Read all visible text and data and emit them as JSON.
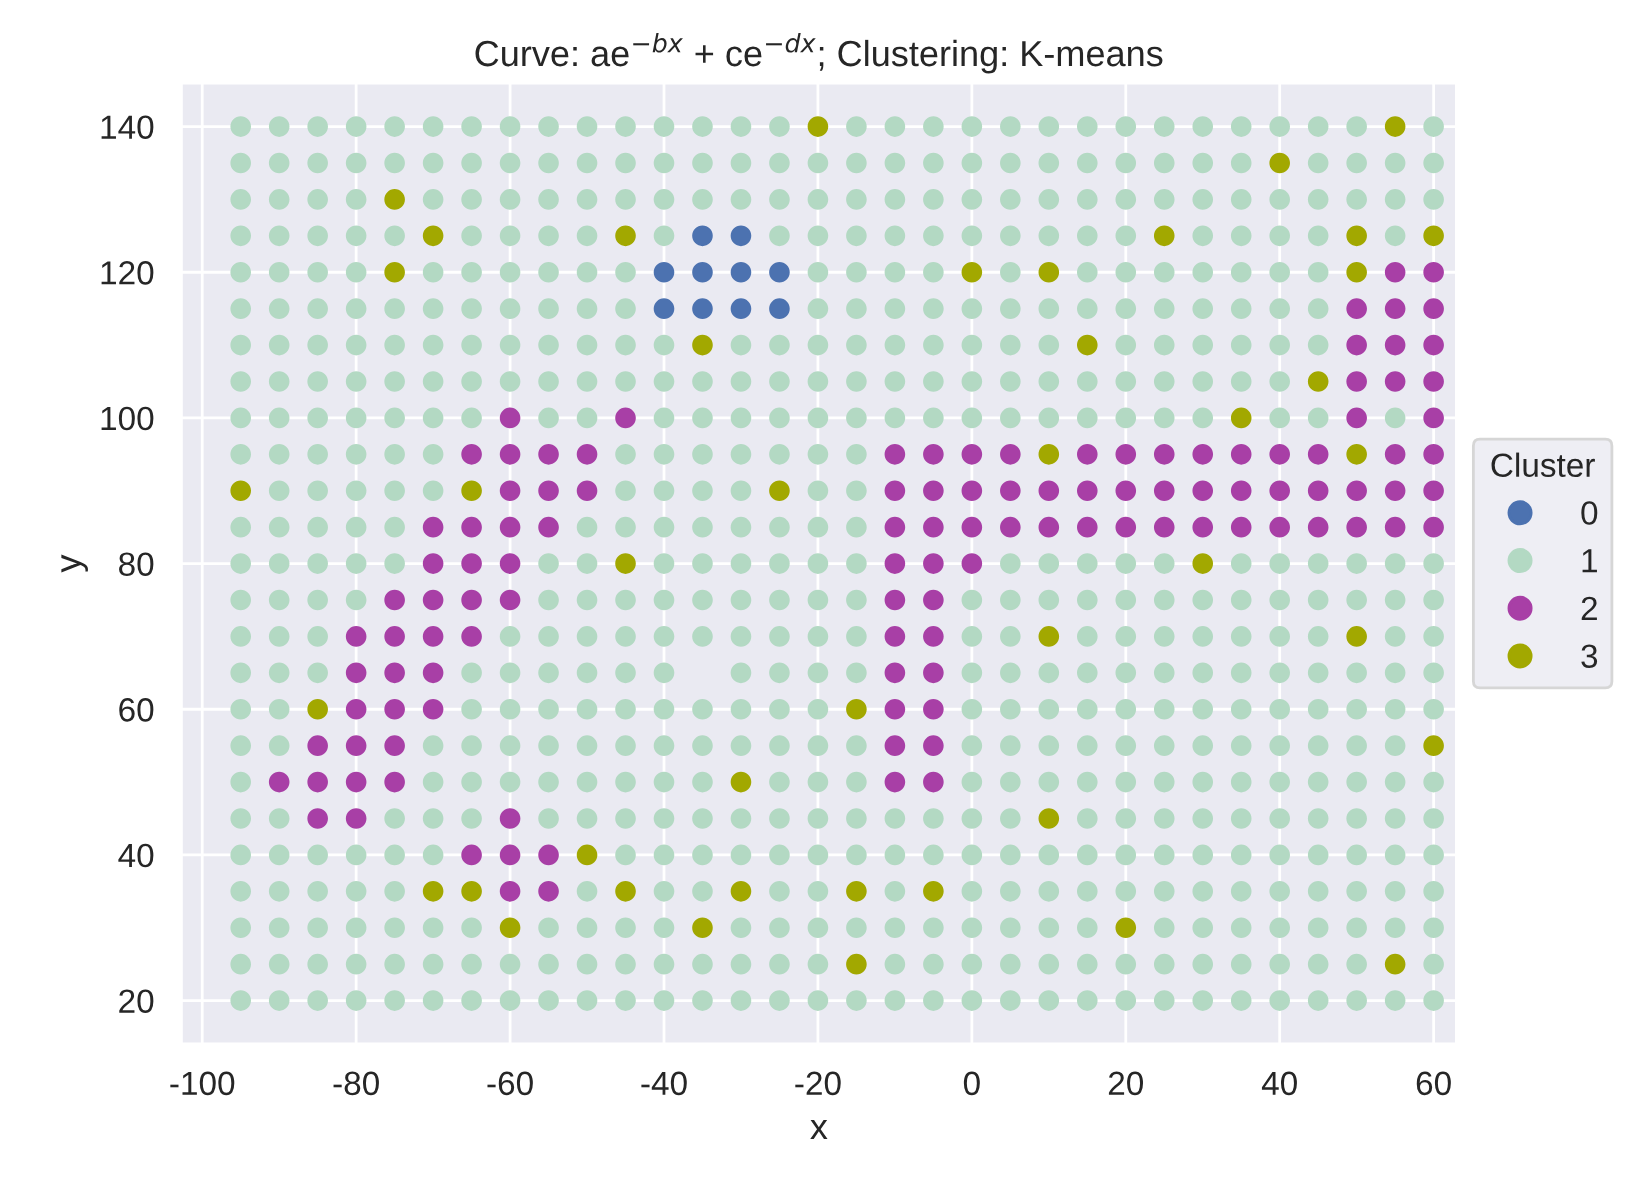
{
  "chart_data": {
    "type": "scatter",
    "title": "Curve: ae$^{−bx}$ + ce$^{−dx}$; Clustering: K-means",
    "xlabel": "x",
    "ylabel": "y",
    "legend_title": "Cluster",
    "legend": "right",
    "grid": true,
    "marker": "circle",
    "xlim": [
      -102.75,
      63
    ],
    "ylim": [
      14,
      146
    ],
    "xticks": [
      -100,
      -80,
      -60,
      -40,
      -20,
      0,
      20,
      40,
      60
    ],
    "yticks": [
      20,
      40,
      60,
      80,
      100,
      120,
      140
    ],
    "series": [
      {
        "name": "0",
        "color": "#4c72b0",
        "x": [
          -35,
          -30,
          -40,
          -35,
          -30,
          -25,
          -40,
          -35,
          -30,
          -25
        ],
        "values": [
          125,
          125,
          120,
          120,
          120,
          120,
          115,
          115,
          115,
          115
        ]
      },
      {
        "name": "1",
        "color": "#b3d9c3",
        "x": [
          -95,
          -90,
          -85,
          -80,
          -75,
          -70,
          -65,
          -60,
          -55,
          -50,
          -45,
          -40,
          -35,
          -30,
          -25,
          -15,
          -10,
          -5,
          0,
          5,
          10,
          15,
          20,
          25,
          30,
          35,
          40,
          45,
          50,
          60,
          -95,
          -90,
          -85,
          -80,
          -75,
          -70,
          -65,
          -60,
          -55,
          -50,
          -45,
          -40,
          -35,
          -30,
          -25,
          -20,
          -15,
          -10,
          -5,
          0,
          5,
          10,
          15,
          20,
          25,
          30,
          35,
          45,
          50,
          55,
          60,
          -95,
          -90,
          -85,
          -80,
          -70,
          -65,
          -60,
          -55,
          -50,
          -45,
          -40,
          -35,
          -30,
          -25,
          -20,
          -15,
          -10,
          -5,
          0,
          5,
          10,
          15,
          20,
          25,
          30,
          35,
          40,
          45,
          50,
          55,
          60,
          -95,
          -90,
          -85,
          -80,
          -75,
          -65,
          -60,
          -55,
          -50,
          -40,
          -25,
          -20,
          -15,
          -10,
          -5,
          0,
          5,
          10,
          15,
          20,
          30,
          35,
          40,
          45,
          55,
          -95,
          -90,
          -85,
          -80,
          -70,
          -65,
          -60,
          -55,
          -50,
          -45,
          -20,
          -15,
          -10,
          -5,
          5,
          15,
          20,
          25,
          30,
          35,
          40,
          45,
          -95,
          -90,
          -85,
          -80,
          -75,
          -70,
          -65,
          -60,
          -55,
          -50,
          -45,
          -20,
          -15,
          -10,
          -5,
          0,
          5,
          10,
          15,
          20,
          25,
          30,
          35,
          40,
          45,
          -95,
          -90,
          -85,
          -80,
          -75,
          -70,
          -65,
          -60,
          -55,
          -50,
          -45,
          -40,
          -30,
          -25,
          -20,
          -15,
          -10,
          -5,
          0,
          5,
          10,
          20,
          25,
          30,
          35,
          40,
          45,
          -95,
          -90,
          -85,
          -80,
          -75,
          -70,
          -65,
          -60,
          -55,
          -50,
          -45,
          -40,
          -35,
          -30,
          -25,
          -20,
          -15,
          -10,
          -5,
          0,
          5,
          10,
          15,
          20,
          25,
          30,
          35,
          40,
          -95,
          -90,
          -85,
          -80,
          -75,
          -70,
          -65,
          -55,
          -50,
          -40,
          -35,
          -30,
          -25,
          -20,
          -15,
          -10,
          -5,
          0,
          5,
          10,
          15,
          20,
          25,
          30,
          40,
          45,
          55,
          -95,
          -90,
          -85,
          -80,
          -75,
          -70,
          -45,
          -40,
          -35,
          -30,
          -25,
          -20,
          -15,
          -90,
          -85,
          -80,
          -75,
          -70,
          -45,
          -40,
          -35,
          -30,
          -20,
          -15,
          -95,
          -90,
          -85,
          -80,
          -75,
          -50,
          -45,
          -40,
          -35,
          -30,
          -25,
          -20,
          -15,
          -95,
          -90,
          -85,
          -80,
          -75,
          -55,
          -50,
          -40,
          -35,
          -30,
          -25,
          -20,
          -15,
          5,
          10,
          15,
          20,
          25,
          35,
          40,
          45,
          50,
          55,
          60,
          -95,
          -90,
          -85,
          -80,
          -55,
          -50,
          -45,
          -40,
          -35,
          -30,
          -25,
          -20,
          -15,
          0,
          5,
          10,
          15,
          20,
          25,
          30,
          35,
          40,
          45,
          50,
          55,
          60,
          -95,
          -90,
          -85,
          -60,
          -55,
          -50,
          -45,
          -40,
          -35,
          -30,
          -25,
          -20,
          -15,
          0,
          5,
          15,
          20,
          25,
          30,
          35,
          40,
          45,
          55,
          60,
          -95,
          -90,
          -85,
          -65,
          -60,
          -55,
          -50,
          -45,
          -40,
          -30,
          -25,
          -20,
          -15,
          0,
          5,
          10,
          15,
          20,
          25,
          30,
          35,
          40,
          45,
          50,
          55,
          60,
          -95,
          -90,
          -65,
          -60,
          -55,
          -50,
          -45,
          -40,
          -35,
          -30,
          -25,
          -20,
          0,
          5,
          10,
          15,
          20,
          25,
          30,
          35,
          40,
          45,
          50,
          55,
          60,
          -95,
          -90,
          -70,
          -65,
          -60,
          -55,
          -50,
          -45,
          -40,
          -35,
          -30,
          -25,
          -20,
          -15,
          0,
          5,
          10,
          15,
          20,
          25,
          30,
          35,
          40,
          45,
          50,
          55,
          -95,
          -70,
          -65,
          -60,
          -55,
          -50,
          -45,
          -40,
          -35,
          -25,
          -20,
          -15,
          0,
          5,
          10,
          15,
          20,
          25,
          30,
          35,
          40,
          45,
          50,
          55,
          60,
          -95,
          -90,
          -75,
          -70,
          -65,
          -55,
          -50,
          -45,
          -40,
          -35,
          -30,
          -25,
          -20,
          -15,
          -10,
          -5,
          0,
          5,
          15,
          20,
          25,
          30,
          35,
          40,
          45,
          50,
          55,
          60,
          -95,
          -90,
          -85,
          -80,
          -75,
          -70,
          -45,
          -40,
          -35,
          -30,
          -25,
          -20,
          -15,
          -10,
          -5,
          0,
          5,
          10,
          15,
          20,
          25,
          30,
          35,
          40,
          45,
          50,
          55,
          60,
          -95,
          -90,
          -85,
          -80,
          -75,
          -50,
          -40,
          -35,
          -25,
          -20,
          -10,
          0,
          5,
          10,
          15,
          20,
          25,
          30,
          35,
          40,
          45,
          50,
          55,
          60,
          -95,
          -90,
          -85,
          -80,
          -75,
          -70,
          -65,
          -55,
          -50,
          -45,
          -40,
          -30,
          -25,
          -20,
          -15,
          -10,
          -5,
          0,
          5,
          10,
          15,
          25,
          30,
          35,
          40,
          45,
          50,
          55,
          60,
          -95,
          -90,
          -85,
          -80,
          -75,
          -70,
          -65,
          -60,
          -55,
          -50,
          -45,
          -40,
          -35,
          -30,
          -25,
          -20,
          -10,
          -5,
          0,
          5,
          10,
          15,
          20,
          25,
          30,
          35,
          40,
          45,
          50,
          60,
          -95,
          -90,
          -85,
          -80,
          -75,
          -70,
          -65,
          -60,
          -55,
          -50,
          -45,
          -40,
          -35,
          -30,
          -25,
          -20,
          -15,
          -10,
          -5,
          0,
          5,
          10,
          15,
          20,
          25,
          30,
          35,
          40,
          45,
          50,
          55,
          60
        ],
        "values": [
          140,
          140,
          140,
          140,
          140,
          140,
          140,
          140,
          140,
          140,
          140,
          140,
          140,
          140,
          140,
          140,
          140,
          140,
          140,
          140,
          140,
          140,
          140,
          140,
          140,
          140,
          140,
          140,
          140,
          140,
          135,
          135,
          135,
          135,
          135,
          135,
          135,
          135,
          135,
          135,
          135,
          135,
          135,
          135,
          135,
          135,
          135,
          135,
          135,
          135,
          135,
          135,
          135,
          135,
          135,
          135,
          135,
          135,
          135,
          135,
          135,
          130,
          130,
          130,
          130,
          130,
          130,
          130,
          130,
          130,
          130,
          130,
          130,
          130,
          130,
          130,
          130,
          130,
          130,
          130,
          130,
          130,
          130,
          130,
          130,
          130,
          130,
          130,
          130,
          130,
          130,
          130,
          125,
          125,
          125,
          125,
          125,
          125,
          125,
          125,
          125,
          125,
          125,
          125,
          125,
          125,
          125,
          125,
          125,
          125,
          125,
          125,
          125,
          125,
          125,
          125,
          125,
          120,
          120,
          120,
          120,
          120,
          120,
          120,
          120,
          120,
          120,
          120,
          120,
          120,
          120,
          120,
          120,
          120,
          120,
          120,
          120,
          120,
          120,
          115,
          115,
          115,
          115,
          115,
          115,
          115,
          115,
          115,
          115,
          115,
          115,
          115,
          115,
          115,
          115,
          115,
          115,
          115,
          115,
          115,
          115,
          115,
          115,
          115,
          110,
          110,
          110,
          110,
          110,
          110,
          110,
          110,
          110,
          110,
          110,
          110,
          110,
          110,
          110,
          110,
          110,
          110,
          110,
          110,
          110,
          110,
          110,
          110,
          110,
          110,
          110,
          105,
          105,
          105,
          105,
          105,
          105,
          105,
          105,
          105,
          105,
          105,
          105,
          105,
          105,
          105,
          105,
          105,
          105,
          105,
          105,
          105,
          105,
          105,
          105,
          105,
          105,
          105,
          105,
          100,
          100,
          100,
          100,
          100,
          100,
          100,
          100,
          100,
          100,
          100,
          100,
          100,
          100,
          100,
          100,
          100,
          100,
          100,
          100,
          100,
          100,
          100,
          100,
          100,
          100,
          100,
          95,
          95,
          95,
          95,
          95,
          95,
          95,
          95,
          95,
          95,
          95,
          95,
          95,
          90,
          90,
          90,
          90,
          90,
          90,
          90,
          90,
          90,
          90,
          90,
          85,
          85,
          85,
          85,
          85,
          85,
          85,
          85,
          85,
          85,
          85,
          85,
          85,
          80,
          80,
          80,
          80,
          80,
          80,
          80,
          80,
          80,
          80,
          80,
          80,
          80,
          80,
          80,
          80,
          80,
          80,
          80,
          80,
          80,
          80,
          80,
          80,
          75,
          75,
          75,
          75,
          75,
          75,
          75,
          75,
          75,
          75,
          75,
          75,
          75,
          75,
          75,
          75,
          75,
          75,
          75,
          75,
          75,
          75,
          75,
          75,
          75,
          75,
          70,
          70,
          70,
          70,
          70,
          70,
          70,
          70,
          70,
          70,
          70,
          70,
          70,
          70,
          70,
          70,
          70,
          70,
          70,
          70,
          70,
          70,
          70,
          70,
          65,
          65,
          65,
          65,
          65,
          65,
          65,
          65,
          65,
          65,
          65,
          65,
          65,
          65,
          65,
          65,
          65,
          65,
          65,
          65,
          65,
          65,
          65,
          65,
          65,
          65,
          60,
          60,
          60,
          60,
          60,
          60,
          60,
          60,
          60,
          60,
          60,
          60,
          60,
          60,
          60,
          60,
          60,
          60,
          60,
          60,
          60,
          60,
          60,
          60,
          60,
          55,
          55,
          55,
          55,
          55,
          55,
          55,
          55,
          55,
          55,
          55,
          55,
          55,
          55,
          55,
          55,
          55,
          55,
          55,
          55,
          55,
          55,
          55,
          55,
          55,
          55,
          50,
          50,
          50,
          50,
          50,
          50,
          50,
          50,
          50,
          50,
          50,
          50,
          50,
          50,
          50,
          50,
          50,
          50,
          50,
          50,
          50,
          50,
          50,
          50,
          50,
          45,
          45,
          45,
          45,
          45,
          45,
          45,
          45,
          45,
          45,
          45,
          45,
          45,
          45,
          45,
          45,
          45,
          45,
          45,
          45,
          45,
          45,
          45,
          45,
          45,
          45,
          45,
          45,
          40,
          40,
          40,
          40,
          40,
          40,
          40,
          40,
          40,
          40,
          40,
          40,
          40,
          40,
          40,
          40,
          40,
          40,
          40,
          40,
          40,
          40,
          40,
          40,
          40,
          40,
          40,
          40,
          35,
          35,
          35,
          35,
          35,
          35,
          35,
          35,
          35,
          35,
          35,
          35,
          35,
          35,
          35,
          35,
          35,
          35,
          35,
          35,
          35,
          35,
          35,
          35,
          30,
          30,
          30,
          30,
          30,
          30,
          30,
          30,
          30,
          30,
          30,
          30,
          30,
          30,
          30,
          30,
          30,
          30,
          30,
          30,
          30,
          30,
          30,
          30,
          30,
          30,
          30,
          30,
          30,
          25,
          25,
          25,
          25,
          25,
          25,
          25,
          25,
          25,
          25,
          25,
          25,
          25,
          25,
          25,
          25,
          25,
          25,
          25,
          25,
          25,
          25,
          25,
          25,
          25,
          25,
          25,
          25,
          25,
          25,
          20,
          20,
          20,
          20,
          20,
          20,
          20,
          20,
          20,
          20,
          20,
          20,
          20,
          20,
          20,
          20,
          20,
          20,
          20,
          20,
          20,
          20,
          20,
          20,
          20,
          20,
          20,
          20,
          20,
          20,
          20,
          20
        ]
      },
      {
        "name": "2",
        "color": "#a83fa6",
        "x": [
          55,
          60,
          50,
          55,
          60,
          50,
          55,
          60,
          50,
          55,
          60,
          -60,
          -45,
          50,
          60,
          -65,
          -60,
          -55,
          -50,
          -10,
          -5,
          0,
          5,
          15,
          20,
          25,
          30,
          35,
          40,
          45,
          55,
          60,
          -60,
          -55,
          -50,
          -10,
          -5,
          0,
          5,
          10,
          15,
          20,
          25,
          30,
          35,
          40,
          45,
          50,
          55,
          60,
          -70,
          -65,
          -60,
          -55,
          -10,
          -5,
          0,
          5,
          10,
          15,
          20,
          25,
          30,
          35,
          40,
          45,
          50,
          55,
          60,
          -70,
          -65,
          -60,
          -10,
          -5,
          0,
          -75,
          -70,
          -65,
          -60,
          -10,
          -5,
          -80,
          -75,
          -70,
          -65,
          -10,
          -5,
          -80,
          -75,
          -70,
          -10,
          -5,
          -80,
          -75,
          -70,
          -10,
          -5,
          -85,
          -80,
          -75,
          -10,
          -5,
          -90,
          -85,
          -80,
          -75,
          -10,
          -5,
          -85,
          -80,
          -60,
          -65,
          -60,
          -55,
          -60,
          -55
        ],
        "values": [
          120,
          120,
          115,
          115,
          115,
          110,
          110,
          110,
          105,
          105,
          105,
          100,
          100,
          100,
          100,
          95,
          95,
          95,
          95,
          95,
          95,
          95,
          95,
          95,
          95,
          95,
          95,
          95,
          95,
          95,
          95,
          95,
          90,
          90,
          90,
          90,
          90,
          90,
          90,
          90,
          90,
          90,
          90,
          90,
          90,
          90,
          90,
          90,
          90,
          90,
          85,
          85,
          85,
          85,
          85,
          85,
          85,
          85,
          85,
          85,
          85,
          85,
          85,
          85,
          85,
          85,
          85,
          85,
          85,
          80,
          80,
          80,
          80,
          80,
          80,
          75,
          75,
          75,
          75,
          75,
          75,
          70,
          70,
          70,
          70,
          70,
          70,
          65,
          65,
          65,
          65,
          65,
          60,
          60,
          60,
          60,
          60,
          55,
          55,
          55,
          55,
          55,
          50,
          50,
          50,
          50,
          50,
          50,
          45,
          45,
          45,
          40,
          40,
          40,
          35,
          35
        ]
      },
      {
        "name": "3",
        "color": "#a2a800",
        "x": [
          -20,
          55,
          40,
          -75,
          -70,
          -45,
          25,
          50,
          60,
          -75,
          0,
          10,
          50,
          -35,
          15,
          45,
          35,
          10,
          50,
          -95,
          -65,
          -25,
          -45,
          30,
          10,
          50,
          -85,
          -15,
          60,
          -30,
          10,
          -50,
          -70,
          -65,
          -45,
          -30,
          -15,
          -5,
          -60,
          -35,
          20,
          -15,
          55
        ],
        "values": [
          140,
          140,
          135,
          130,
          125,
          125,
          125,
          125,
          125,
          120,
          120,
          120,
          120,
          110,
          110,
          105,
          100,
          95,
          95,
          90,
          90,
          90,
          80,
          80,
          70,
          70,
          60,
          60,
          55,
          50,
          45,
          40,
          35,
          35,
          35,
          35,
          35,
          35,
          30,
          30,
          30,
          25,
          25
        ]
      }
    ]
  }
}
